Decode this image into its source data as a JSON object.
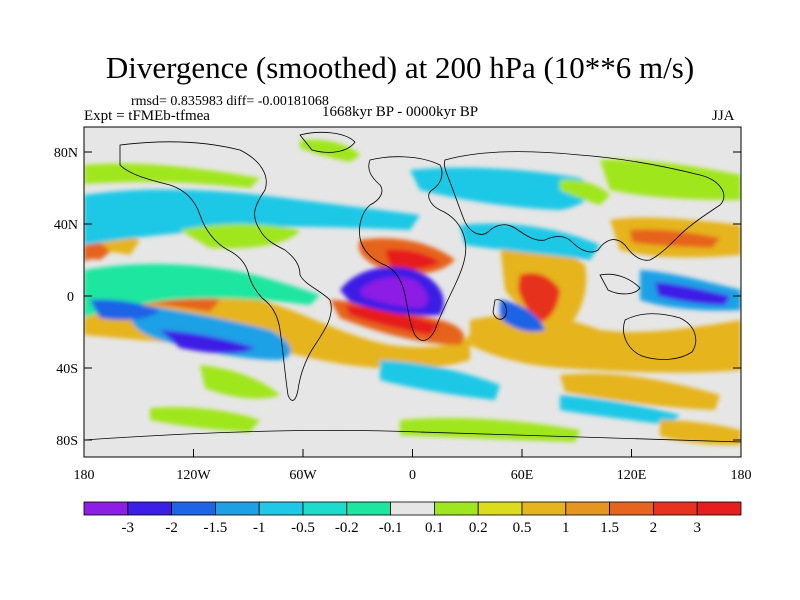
{
  "header": {
    "title": "Divergence (smoothed) at 200 hPa (10**6 m/s)",
    "stats": "rmsd= 0.835983 diff= -0.00181068",
    "experiment": "Expt = tFMEb-tfmea",
    "period": "1668kyr BP - 0000kyr BP",
    "season": "JJA"
  },
  "axes": {
    "lat_labels": [
      "80N",
      "40N",
      "0",
      "40S",
      "80S"
    ],
    "lon_labels": [
      "180",
      "120W",
      "60W",
      "0",
      "60E",
      "120E",
      "180"
    ]
  },
  "colorbar": {
    "labels": [
      "-3",
      "-2",
      "-1.5",
      "-1",
      "-0.5",
      "-0.2",
      "-0.1",
      "0.1",
      "0.2",
      "0.5",
      "1",
      "1.5",
      "2",
      "3"
    ],
    "colors": [
      "#8c1ee6",
      "#3c1ee6",
      "#1e64e6",
      "#1ea0e6",
      "#1ec8e6",
      "#1edccc",
      "#1ee6a0",
      "#e6e6e6",
      "#a0e61e",
      "#dcdc1e",
      "#e6b41e",
      "#e6961e",
      "#e6641e",
      "#e6321e",
      "#e61e1e"
    ]
  }
}
